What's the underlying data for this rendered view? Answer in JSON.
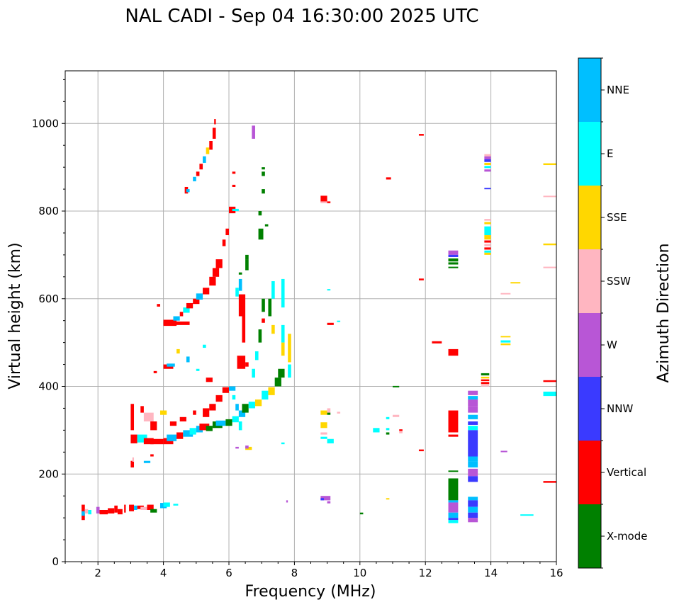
{
  "chart_data": {
    "type": "scatter",
    "subtype": "ionogram",
    "title": "NAL CADI - Sep 04 16:30:00 2025 UTC",
    "xlabel": "Frequency (MHz)",
    "ylabel": "Virtual height (km)",
    "xlim": [
      1,
      16
    ],
    "ylim": [
      0,
      1120
    ],
    "xticks": [
      2,
      4,
      6,
      8,
      10,
      12,
      14,
      16
    ],
    "yticks": [
      0,
      200,
      400,
      600,
      800,
      1000
    ],
    "grid": true,
    "colorbar": {
      "label": "Azimuth Direction",
      "categories": [
        "X-mode",
        "Vertical",
        "NNW",
        "W",
        "SSW",
        "SSE",
        "E",
        "NNE"
      ],
      "colors": [
        "#008000",
        "#ff0000",
        "#3a3aff",
        "#b856d6",
        "#ffb6c1",
        "#ffd700",
        "#00ffff",
        "#00bfff"
      ],
      "placement": "right"
    },
    "points_format": "[freq_MHz_start, freq_MHz_end, height_km_start, height_km_end, category_index]",
    "points": [
      [
        1.5,
        1.6,
        95,
        130,
        1
      ],
      [
        1.5,
        1.6,
        105,
        115,
        7
      ],
      [
        1.6,
        1.7,
        110,
        120,
        4
      ],
      [
        1.7,
        1.8,
        108,
        118,
        6
      ],
      [
        1.95,
        2.05,
        110,
        125,
        3
      ],
      [
        2.05,
        2.3,
        108,
        118,
        1
      ],
      [
        2.3,
        2.5,
        110,
        122,
        1
      ],
      [
        2.5,
        2.6,
        112,
        128,
        1
      ],
      [
        2.6,
        2.75,
        108,
        120,
        1
      ],
      [
        2.8,
        2.85,
        112,
        130,
        1
      ],
      [
        2.95,
        3.1,
        115,
        130,
        1
      ],
      [
        3.1,
        3.2,
        118,
        128,
        7
      ],
      [
        3.2,
        3.4,
        120,
        128,
        1
      ],
      [
        3.3,
        3.5,
        118,
        125,
        4
      ],
      [
        3.5,
        3.7,
        118,
        130,
        1
      ],
      [
        3.6,
        3.8,
        112,
        120,
        0
      ],
      [
        3.9,
        4.1,
        122,
        134,
        7
      ],
      [
        4.0,
        4.2,
        125,
        135,
        6
      ],
      [
        4.3,
        4.45,
        128,
        132,
        6
      ],
      [
        3.0,
        3.1,
        215,
        230,
        1
      ],
      [
        3.05,
        3.1,
        228,
        238,
        4
      ],
      [
        3.4,
        3.6,
        225,
        230,
        7
      ],
      [
        3.6,
        3.7,
        240,
        245,
        1
      ],
      [
        3.0,
        3.2,
        270,
        290,
        1
      ],
      [
        3.2,
        3.5,
        272,
        290,
        6
      ],
      [
        3.4,
        3.7,
        268,
        282,
        1
      ],
      [
        3.6,
        4.0,
        268,
        280,
        1
      ],
      [
        4.0,
        4.3,
        268,
        282,
        1
      ],
      [
        4.1,
        4.4,
        275,
        290,
        7
      ],
      [
        4.4,
        4.6,
        280,
        295,
        1
      ],
      [
        4.6,
        4.9,
        285,
        300,
        7
      ],
      [
        4.8,
        5.0,
        290,
        305,
        6
      ],
      [
        5.0,
        5.2,
        295,
        310,
        7
      ],
      [
        5.1,
        5.4,
        300,
        315,
        1
      ],
      [
        5.3,
        5.5,
        298,
        310,
        0
      ],
      [
        5.5,
        5.8,
        305,
        320,
        0
      ],
      [
        5.6,
        5.9,
        310,
        322,
        7
      ],
      [
        5.9,
        6.1,
        310,
        325,
        0
      ],
      [
        6.1,
        6.3,
        318,
        332,
        6
      ],
      [
        6.3,
        6.5,
        330,
        345,
        7
      ],
      [
        6.4,
        6.6,
        340,
        360,
        0
      ],
      [
        6.6,
        6.8,
        350,
        365,
        6
      ],
      [
        6.8,
        7.0,
        355,
        370,
        5
      ],
      [
        7.0,
        7.2,
        370,
        390,
        6
      ],
      [
        7.2,
        7.4,
        380,
        398,
        5
      ],
      [
        7.4,
        7.6,
        400,
        420,
        0
      ],
      [
        7.5,
        7.7,
        420,
        440,
        0
      ],
      [
        3.0,
        3.1,
        300,
        360,
        1
      ],
      [
        3.3,
        3.4,
        340,
        355,
        1
      ],
      [
        3.4,
        3.7,
        320,
        340,
        4
      ],
      [
        3.6,
        3.8,
        300,
        320,
        1
      ],
      [
        3.9,
        4.1,
        335,
        345,
        5
      ],
      [
        4.2,
        4.4,
        310,
        320,
        1
      ],
      [
        4.5,
        4.7,
        320,
        330,
        1
      ],
      [
        4.9,
        5.0,
        335,
        345,
        1
      ],
      [
        5.2,
        5.4,
        330,
        350,
        1
      ],
      [
        5.4,
        5.6,
        345,
        360,
        1
      ],
      [
        5.6,
        5.8,
        365,
        380,
        1
      ],
      [
        5.8,
        6.0,
        385,
        398,
        1
      ],
      [
        6.0,
        6.2,
        390,
        400,
        7
      ],
      [
        5.3,
        5.5,
        410,
        420,
        1
      ],
      [
        4.0,
        4.3,
        440,
        450,
        1
      ],
      [
        4.1,
        4.35,
        445,
        452,
        7
      ],
      [
        4.7,
        4.8,
        455,
        468,
        7
      ],
      [
        5.0,
        5.1,
        435,
        440,
        6
      ],
      [
        5.2,
        5.3,
        488,
        495,
        6
      ],
      [
        4.4,
        4.5,
        475,
        485,
        5
      ],
      [
        3.7,
        3.8,
        430,
        435,
        1
      ],
      [
        3.8,
        3.9,
        582,
        588,
        1
      ],
      [
        4.8,
        4.0,
        540,
        548,
        1
      ],
      [
        4.0,
        4.4,
        538,
        552,
        1
      ],
      [
        4.3,
        4.5,
        550,
        560,
        7
      ],
      [
        4.5,
        4.6,
        560,
        570,
        1
      ],
      [
        4.6,
        4.8,
        568,
        580,
        6
      ],
      [
        4.7,
        4.9,
        578,
        590,
        1
      ],
      [
        4.9,
        5.1,
        588,
        600,
        1
      ],
      [
        5.0,
        5.2,
        598,
        612,
        7
      ],
      [
        5.2,
        5.4,
        610,
        625,
        1
      ],
      [
        5.4,
        5.6,
        630,
        650,
        1
      ],
      [
        5.5,
        5.7,
        650,
        670,
        1
      ],
      [
        5.6,
        5.8,
        670,
        690,
        1
      ],
      [
        5.8,
        5.9,
        720,
        735,
        1
      ],
      [
        5.9,
        6.0,
        745,
        760,
        1
      ],
      [
        6.0,
        6.2,
        795,
        810,
        1
      ],
      [
        4.65,
        4.75,
        840,
        855,
        1
      ],
      [
        4.7,
        4.8,
        843,
        850,
        7
      ],
      [
        4.9,
        5.0,
        868,
        878,
        7
      ],
      [
        5.0,
        5.1,
        880,
        890,
        1
      ],
      [
        5.1,
        5.2,
        895,
        908,
        1
      ],
      [
        5.2,
        5.3,
        910,
        925,
        7
      ],
      [
        5.3,
        5.4,
        930,
        945,
        5
      ],
      [
        5.4,
        5.5,
        940,
        960,
        1
      ],
      [
        5.5,
        5.6,
        965,
        990,
        1
      ],
      [
        5.55,
        5.6,
        998,
        1010,
        1
      ],
      [
        6.1,
        6.2,
        885,
        890,
        1
      ],
      [
        6.1,
        6.2,
        855,
        860,
        1
      ],
      [
        6.1,
        6.3,
        800,
        805,
        6
      ],
      [
        6.7,
        6.8,
        965,
        995,
        3
      ],
      [
        7.0,
        7.1,
        895,
        900,
        0
      ],
      [
        7.0,
        7.1,
        880,
        890,
        0
      ],
      [
        7.0,
        7.1,
        840,
        850,
        0
      ],
      [
        6.9,
        7.0,
        790,
        800,
        0
      ],
      [
        7.1,
        7.2,
        765,
        770,
        0
      ],
      [
        6.9,
        7.05,
        735,
        760,
        0
      ],
      [
        6.5,
        6.6,
        690,
        700,
        0
      ],
      [
        6.5,
        6.6,
        665,
        690,
        0
      ],
      [
        6.3,
        6.4,
        655,
        660,
        0
      ],
      [
        6.3,
        6.4,
        618,
        645,
        7
      ],
      [
        6.2,
        6.3,
        605,
        625,
        6
      ],
      [
        6.3,
        6.5,
        560,
        610,
        1
      ],
      [
        6.4,
        6.5,
        500,
        560,
        1
      ],
      [
        6.25,
        6.5,
        440,
        470,
        1
      ],
      [
        6.5,
        6.6,
        445,
        455,
        1
      ],
      [
        6.7,
        6.8,
        420,
        440,
        6
      ],
      [
        6.8,
        6.9,
        460,
        480,
        6
      ],
      [
        6.9,
        7.0,
        500,
        530,
        0
      ],
      [
        7.0,
        7.1,
        545,
        555,
        1
      ],
      [
        7.2,
        7.3,
        560,
        600,
        0
      ],
      [
        7.3,
        7.4,
        520,
        540,
        5
      ],
      [
        7.6,
        7.7,
        500,
        540,
        6
      ],
      [
        7.6,
        7.7,
        470,
        500,
        5
      ],
      [
        7.8,
        7.9,
        455,
        520,
        5
      ],
      [
        7.8,
        7.9,
        420,
        450,
        6
      ],
      [
        7.3,
        7.4,
        600,
        640,
        6
      ],
      [
        7.6,
        7.7,
        580,
        645,
        6
      ],
      [
        7.0,
        7.1,
        570,
        600,
        0
      ],
      [
        6.1,
        6.2,
        370,
        380,
        6
      ],
      [
        6.2,
        6.3,
        345,
        360,
        7
      ],
      [
        6.3,
        6.4,
        300,
        320,
        6
      ],
      [
        6.5,
        6.7,
        255,
        262,
        5
      ],
      [
        6.5,
        6.6,
        258,
        265,
        3
      ],
      [
        6.2,
        6.3,
        258,
        262,
        3
      ],
      [
        7.6,
        7.7,
        268,
        272,
        6
      ],
      [
        7.75,
        7.8,
        135,
        140,
        3
      ],
      [
        8.8,
        9.0,
        820,
        835,
        1
      ],
      [
        8.8,
        9.0,
        818,
        822,
        4
      ],
      [
        9.0,
        9.1,
        818,
        822,
        1
      ],
      [
        9.0,
        9.2,
        540,
        545,
        1
      ],
      [
        9.0,
        9.1,
        620,
        622,
        6
      ],
      [
        9.3,
        9.4,
        548,
        550,
        6
      ],
      [
        8.8,
        9.0,
        335,
        345,
        5
      ],
      [
        9.0,
        9.1,
        338,
        350,
        4
      ],
      [
        9.0,
        9.1,
        335,
        340,
        0
      ],
      [
        9.3,
        9.4,
        338,
        342,
        4
      ],
      [
        8.8,
        9.0,
        305,
        318,
        5
      ],
      [
        8.8,
        9.0,
        290,
        295,
        4
      ],
      [
        8.8,
        9.0,
        280,
        285,
        6
      ],
      [
        9.0,
        9.2,
        270,
        280,
        6
      ],
      [
        8.8,
        9.1,
        140,
        150,
        3
      ],
      [
        8.8,
        8.9,
        140,
        145,
        2
      ],
      [
        9.0,
        9.1,
        133,
        138,
        3
      ],
      [
        10.0,
        10.1,
        108,
        112,
        0
      ],
      [
        10.4,
        10.6,
        295,
        305,
        6
      ],
      [
        10.8,
        10.9,
        300,
        305,
        6
      ],
      [
        10.8,
        10.9,
        290,
        295,
        0
      ],
      [
        11.0,
        11.2,
        330,
        335,
        4
      ],
      [
        11.2,
        11.3,
        298,
        302,
        1
      ],
      [
        11.2,
        11.3,
        293,
        297,
        4
      ],
      [
        10.8,
        10.9,
        325,
        330,
        6
      ],
      [
        10.8,
        10.9,
        142,
        145,
        5
      ],
      [
        10.8,
        10.95,
        872,
        877,
        1
      ],
      [
        11.8,
        11.95,
        972,
        976,
        1
      ],
      [
        11.8,
        11.95,
        642,
        646,
        1
      ],
      [
        11.8,
        11.95,
        252,
        256,
        1
      ],
      [
        11.0,
        11.2,
        398,
        401,
        0
      ],
      [
        12.2,
        12.5,
        498,
        503,
        1
      ],
      [
        12.7,
        13.0,
        470,
        485,
        1
      ],
      [
        12.7,
        13.0,
        295,
        345,
        1
      ],
      [
        12.7,
        13.0,
        285,
        290,
        1
      ],
      [
        12.7,
        13.0,
        700,
        710,
        3
      ],
      [
        12.7,
        13.0,
        695,
        700,
        2
      ],
      [
        12.7,
        13.0,
        685,
        692,
        0
      ],
      [
        12.7,
        13.0,
        678,
        683,
        0
      ],
      [
        12.7,
        13.0,
        670,
        673,
        0
      ],
      [
        12.7,
        13.0,
        205,
        208,
        0
      ],
      [
        12.7,
        13.0,
        140,
        190,
        0
      ],
      [
        12.7,
        13.0,
        135,
        140,
        7
      ],
      [
        12.7,
        13.0,
        112,
        135,
        3
      ],
      [
        12.7,
        13.0,
        100,
        112,
        7
      ],
      [
        12.7,
        13.0,
        95,
        100,
        2
      ],
      [
        12.7,
        13.0,
        88,
        95,
        6
      ],
      [
        13.3,
        13.6,
        380,
        390,
        3
      ],
      [
        13.3,
        13.6,
        370,
        378,
        7
      ],
      [
        13.3,
        13.6,
        355,
        370,
        3
      ],
      [
        13.3,
        13.6,
        340,
        355,
        3
      ],
      [
        13.3,
        13.6,
        325,
        335,
        7
      ],
      [
        13.3,
        13.6,
        312,
        320,
        2
      ],
      [
        13.3,
        13.6,
        300,
        310,
        6
      ],
      [
        13.3,
        13.6,
        240,
        300,
        2
      ],
      [
        13.3,
        13.6,
        228,
        240,
        7
      ],
      [
        13.3,
        13.6,
        215,
        228,
        7
      ],
      [
        13.3,
        13.6,
        195,
        212,
        3
      ],
      [
        13.3,
        13.6,
        182,
        195,
        2
      ],
      [
        13.3,
        13.6,
        140,
        148,
        7
      ],
      [
        13.3,
        13.6,
        125,
        140,
        2
      ],
      [
        13.3,
        13.6,
        112,
        125,
        7
      ],
      [
        13.3,
        13.6,
        100,
        112,
        2
      ],
      [
        13.3,
        13.6,
        90,
        100,
        3
      ],
      [
        13.8,
        14.0,
        918,
        925,
        3
      ],
      [
        13.8,
        14.0,
        912,
        918,
        2
      ],
      [
        13.8,
        14.0,
        905,
        910,
        5
      ],
      [
        13.8,
        14.0,
        898,
        903,
        6
      ],
      [
        13.8,
        14.0,
        890,
        895,
        3
      ],
      [
        13.8,
        14.0,
        925,
        930,
        4
      ],
      [
        13.8,
        14.0,
        850,
        853,
        2
      ],
      [
        13.8,
        14.0,
        778,
        782,
        4
      ],
      [
        13.8,
        14.0,
        770,
        775,
        5
      ],
      [
        13.8,
        14.0,
        745,
        765,
        6
      ],
      [
        13.8,
        14.0,
        735,
        745,
        5
      ],
      [
        13.8,
        14.0,
        728,
        733,
        1
      ],
      [
        13.8,
        14.0,
        720,
        725,
        4
      ],
      [
        13.8,
        14.0,
        712,
        717,
        1
      ],
      [
        13.8,
        14.0,
        705,
        710,
        6
      ],
      [
        13.8,
        14.0,
        700,
        705,
        5
      ],
      [
        13.7,
        13.95,
        425,
        430,
        0
      ],
      [
        13.7,
        13.95,
        418,
        422,
        5
      ],
      [
        13.7,
        13.95,
        412,
        416,
        1
      ],
      [
        13.7,
        13.95,
        405,
        410,
        1
      ],
      [
        13.7,
        13.95,
        400,
        403,
        4
      ],
      [
        14.3,
        14.6,
        500,
        505,
        6
      ],
      [
        14.3,
        14.6,
        494,
        498,
        5
      ],
      [
        14.3,
        14.6,
        512,
        515,
        5
      ],
      [
        14.3,
        14.6,
        610,
        613,
        4
      ],
      [
        14.6,
        14.9,
        635,
        638,
        5
      ],
      [
        14.3,
        14.5,
        250,
        253,
        3
      ],
      [
        14.9,
        15.3,
        105,
        108,
        6
      ],
      [
        15.6,
        16.0,
        905,
        909,
        5
      ],
      [
        15.6,
        16.0,
        832,
        835,
        4
      ],
      [
        15.6,
        16.0,
        722,
        726,
        5
      ],
      [
        15.6,
        16.0,
        670,
        673,
        4
      ],
      [
        15.6,
        16.0,
        410,
        414,
        1
      ],
      [
        15.6,
        16.0,
        378,
        388,
        6
      ],
      [
        15.6,
        16.0,
        180,
        184,
        1
      ]
    ]
  }
}
